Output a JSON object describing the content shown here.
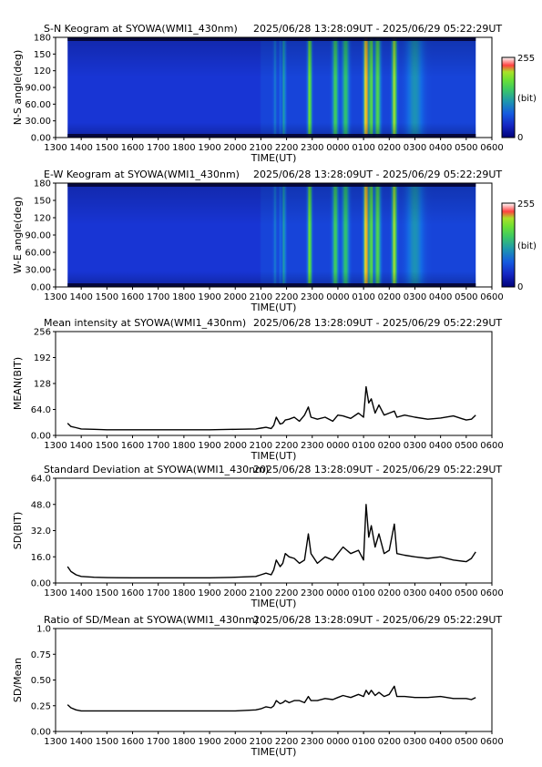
{
  "time_range": "2025/06/28 13:28:09UT - 2025/06/29 05:22:29UT",
  "x_ticks": [
    "1300",
    "1400",
    "1500",
    "1600",
    "1700",
    "1800",
    "1900",
    "2000",
    "2100",
    "2200",
    "2300",
    "0000",
    "0100",
    "0200",
    "0300",
    "0400",
    "0500",
    "0600"
  ],
  "x_label": "TIME(UT)",
  "colors": {
    "background": "#ffffff",
    "series": "#000000",
    "keogram_base": "#1c2fd6"
  },
  "chart_data": [
    {
      "type": "heatmap",
      "title": "S-N Keogram at SYOWA(WMI1_430nm)",
      "ylabel": "N-S angle(deg)",
      "xlabel": "TIME(UT)",
      "xlim": [
        13.0,
        30.0
      ],
      "data_xlim": [
        13.47,
        29.37
      ],
      "ylim": [
        0,
        180
      ],
      "yticks": [
        "0.00",
        "30.00",
        "60.00",
        "90.00",
        "120",
        "150",
        "180"
      ],
      "colorbar": {
        "label": "(bit)",
        "min": "0",
        "max": "255"
      },
      "bright_bands": [
        {
          "t": 21.55,
          "w": 0.05,
          "v": 0.35
        },
        {
          "t": 21.75,
          "w": 0.04,
          "v": 0.3
        },
        {
          "t": 21.9,
          "w": 0.06,
          "v": 0.45
        },
        {
          "t": 22.9,
          "w": 0.07,
          "v": 0.75
        },
        {
          "t": 23.9,
          "w": 0.1,
          "v": 0.6
        },
        {
          "t": 24.3,
          "w": 0.12,
          "v": 0.55
        },
        {
          "t": 25.1,
          "w": 0.08,
          "v": 1.0
        },
        {
          "t": 25.3,
          "w": 0.06,
          "v": 0.75
        },
        {
          "t": 25.55,
          "w": 0.1,
          "v": 0.65
        },
        {
          "t": 26.2,
          "w": 0.08,
          "v": 0.8
        },
        {
          "t": 27.0,
          "w": 0.3,
          "v": 0.4
        }
      ]
    },
    {
      "type": "heatmap",
      "title": "E-W Keogram at SYOWA(WMI1_430nm)",
      "ylabel": "W-E angle(deg)",
      "xlabel": "TIME(UT)",
      "xlim": [
        13.0,
        30.0
      ],
      "data_xlim": [
        13.47,
        29.37
      ],
      "ylim": [
        0,
        180
      ],
      "yticks": [
        "0.00",
        "30.00",
        "60.00",
        "90.00",
        "120",
        "150",
        "180"
      ],
      "colorbar": {
        "label": "(bit)",
        "min": "0",
        "max": "255"
      },
      "bright_bands": [
        {
          "t": 21.55,
          "w": 0.05,
          "v": 0.35
        },
        {
          "t": 21.75,
          "w": 0.04,
          "v": 0.3
        },
        {
          "t": 21.9,
          "w": 0.06,
          "v": 0.45
        },
        {
          "t": 22.9,
          "w": 0.07,
          "v": 0.75
        },
        {
          "t": 23.9,
          "w": 0.1,
          "v": 0.6
        },
        {
          "t": 24.3,
          "w": 0.12,
          "v": 0.55
        },
        {
          "t": 25.1,
          "w": 0.08,
          "v": 1.0
        },
        {
          "t": 25.3,
          "w": 0.06,
          "v": 0.75
        },
        {
          "t": 25.55,
          "w": 0.1,
          "v": 0.65
        },
        {
          "t": 26.2,
          "w": 0.08,
          "v": 0.8
        },
        {
          "t": 27.0,
          "w": 0.3,
          "v": 0.4
        }
      ]
    },
    {
      "type": "line",
      "title": "Mean intensity at SYOWA(WMI1_430nm)",
      "ylabel": "MEAN(BIT)",
      "xlabel": "TIME(UT)",
      "xlim": [
        13.0,
        30.0
      ],
      "ylim": [
        0,
        256
      ],
      "yticks": [
        "0.00",
        "64.0",
        "128",
        "192",
        "256"
      ],
      "yticks_values": [
        0,
        64,
        128,
        192,
        256
      ],
      "x": [
        13.47,
        13.6,
        13.8,
        14.0,
        14.5,
        15.0,
        16.0,
        17.0,
        18.0,
        19.0,
        20.0,
        20.8,
        21.0,
        21.2,
        21.4,
        21.5,
        21.6,
        21.75,
        21.85,
        21.95,
        22.1,
        22.3,
        22.5,
        22.7,
        22.85,
        22.95,
        23.2,
        23.5,
        23.8,
        24.0,
        24.2,
        24.5,
        24.8,
        25.0,
        25.1,
        25.2,
        25.3,
        25.45,
        25.6,
        25.8,
        26.0,
        26.2,
        26.3,
        26.6,
        27.0,
        27.5,
        28.0,
        28.5,
        29.0,
        29.2,
        29.37
      ],
      "y": [
        30,
        22,
        19,
        16,
        15,
        14,
        14,
        14,
        14,
        14,
        15,
        16,
        18,
        20,
        17,
        25,
        45,
        28,
        30,
        38,
        40,
        45,
        35,
        50,
        70,
        45,
        40,
        45,
        35,
        50,
        48,
        42,
        55,
        45,
        120,
        80,
        90,
        55,
        75,
        50,
        55,
        60,
        45,
        50,
        45,
        40,
        43,
        48,
        38,
        40,
        50
      ]
    },
    {
      "type": "line",
      "title": "Standard Deviation at SYOWA(WMI1_430nm)",
      "ylabel": "SD(BIT)",
      "xlabel": "TIME(UT)",
      "xlim": [
        13.0,
        30.0
      ],
      "ylim": [
        0,
        64
      ],
      "yticks": [
        "0.00",
        "16.0",
        "32.0",
        "48.0",
        "64.0"
      ],
      "yticks_values": [
        0,
        16,
        32,
        48,
        64
      ],
      "x": [
        13.47,
        13.6,
        13.8,
        14.0,
        14.5,
        15.0,
        16.0,
        17.0,
        18.0,
        19.0,
        20.0,
        20.8,
        21.0,
        21.2,
        21.4,
        21.5,
        21.6,
        21.75,
        21.85,
        21.95,
        22.1,
        22.3,
        22.5,
        22.7,
        22.85,
        22.95,
        23.2,
        23.5,
        23.8,
        24.0,
        24.2,
        24.5,
        24.8,
        25.0,
        25.1,
        25.2,
        25.3,
        25.45,
        25.6,
        25.8,
        26.0,
        26.2,
        26.3,
        26.6,
        27.0,
        27.5,
        28.0,
        28.5,
        29.0,
        29.2,
        29.37
      ],
      "y": [
        10,
        7,
        5,
        4,
        3.5,
        3.3,
        3.2,
        3.2,
        3.2,
        3.2,
        3.5,
        4,
        5,
        6,
        5,
        8,
        14,
        10,
        12,
        18,
        16,
        15,
        12,
        14,
        30,
        18,
        12,
        16,
        14,
        18,
        22,
        18,
        20,
        14,
        48,
        28,
        35,
        22,
        30,
        18,
        20,
        36,
        18,
        17,
        16,
        15,
        16,
        14,
        13,
        15,
        19
      ]
    },
    {
      "type": "line",
      "title": "Ratio of SD/Mean at SYOWA(WMI1_430nm)",
      "ylabel": "SD/Mean",
      "xlabel": "TIME(UT)",
      "xlim": [
        13.0,
        30.0
      ],
      "ylim": [
        0,
        1
      ],
      "yticks": [
        "0.00",
        "0.25",
        "0.50",
        "0.75",
        "1.0"
      ],
      "yticks_values": [
        0,
        0.25,
        0.5,
        0.75,
        1.0
      ],
      "x": [
        13.47,
        13.6,
        13.8,
        14.0,
        14.5,
        15.0,
        16.0,
        17.0,
        18.0,
        19.0,
        20.0,
        20.8,
        21.0,
        21.2,
        21.4,
        21.5,
        21.6,
        21.75,
        21.85,
        21.95,
        22.1,
        22.3,
        22.5,
        22.7,
        22.85,
        22.95,
        23.2,
        23.5,
        23.8,
        24.0,
        24.2,
        24.5,
        24.8,
        25.0,
        25.1,
        25.2,
        25.3,
        25.45,
        25.6,
        25.8,
        26.0,
        26.2,
        26.3,
        26.6,
        27.0,
        27.5,
        28.0,
        28.5,
        29.0,
        29.2,
        29.37
      ],
      "y": [
        0.26,
        0.23,
        0.21,
        0.2,
        0.2,
        0.2,
        0.2,
        0.2,
        0.2,
        0.2,
        0.2,
        0.21,
        0.22,
        0.24,
        0.23,
        0.25,
        0.3,
        0.27,
        0.28,
        0.3,
        0.28,
        0.3,
        0.3,
        0.28,
        0.34,
        0.3,
        0.3,
        0.32,
        0.31,
        0.33,
        0.35,
        0.33,
        0.36,
        0.34,
        0.4,
        0.36,
        0.4,
        0.35,
        0.38,
        0.34,
        0.36,
        0.44,
        0.34,
        0.34,
        0.33,
        0.33,
        0.34,
        0.32,
        0.32,
        0.31,
        0.33
      ]
    }
  ]
}
